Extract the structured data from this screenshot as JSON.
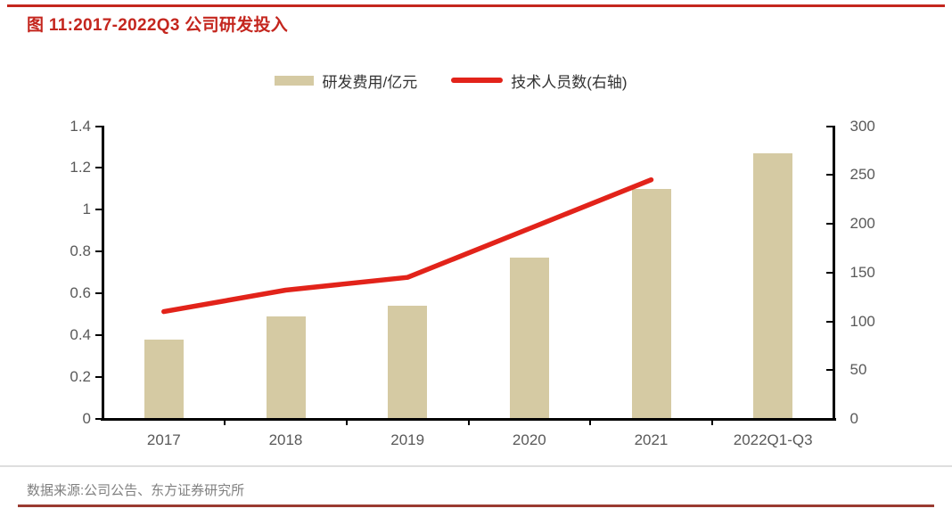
{
  "header": {
    "title": "图 11:2017-2022Q3 公司研发投入"
  },
  "footer": {
    "source": "数据来源:公司公告、东方证券研究所"
  },
  "colors": {
    "bar": "#d5caa3",
    "line": "#e2231a",
    "title": "#c4261e",
    "top_rule": "#c4261e",
    "bottom_rule": "#9a3b31",
    "axis": "#000000",
    "tick_label": "#595959",
    "legend_text": "#333333",
    "source_text": "#808080",
    "hairline": "#dedede"
  },
  "chart_data": {
    "type": "combo",
    "title": "图 11:2017-2022Q3 公司研发投入",
    "categories": [
      "2017",
      "2018",
      "2019",
      "2020",
      "2021",
      "2022Q1-Q3"
    ],
    "series": [
      {
        "name": "研发费用/亿元",
        "type": "bar",
        "axis": "left",
        "values": [
          0.38,
          0.49,
          0.54,
          0.77,
          1.1,
          1.27
        ]
      },
      {
        "name": "技术人员数(右轴)",
        "type": "line",
        "axis": "right",
        "values": [
          110,
          132,
          145,
          195,
          245,
          null
        ]
      }
    ],
    "left_axis": {
      "min": 0,
      "max": 1.4,
      "ticks": [
        "0",
        "0.2",
        "0.4",
        "0.6",
        "0.8",
        "1",
        "1.2",
        "1.4"
      ]
    },
    "right_axis": {
      "min": 0,
      "max": 300,
      "ticks": [
        "0",
        "50",
        "100",
        "150",
        "200",
        "250",
        "300"
      ]
    },
    "legend_position": "top",
    "grid": false
  }
}
